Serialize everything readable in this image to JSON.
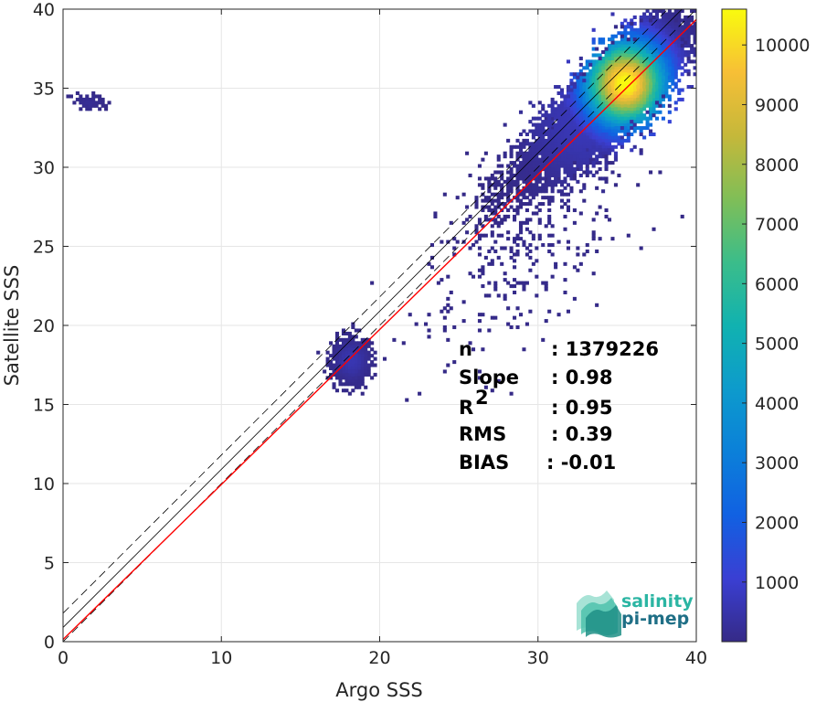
{
  "chart_data": {
    "type": "heatmap",
    "xlabel": "Argo SSS",
    "ylabel": "Satellite SSS",
    "xlim": [
      0,
      40
    ],
    "ylim": [
      0,
      40
    ],
    "xticks": [
      0,
      10,
      20,
      30,
      40
    ],
    "yticks": [
      0,
      5,
      10,
      15,
      20,
      25,
      30,
      35,
      40
    ],
    "grid": true,
    "colorbar": {
      "colormap": "parula",
      "min": 1,
      "max": 10600,
      "ticks": [
        1000,
        2000,
        3000,
        4000,
        5000,
        6000,
        7000,
        8000,
        9000,
        10000
      ]
    },
    "reference_lines": [
      {
        "style": "solid",
        "color": "#000000",
        "slope": 1,
        "intercept": 0.9
      },
      {
        "style": "dashed",
        "color": "#000000",
        "slope": 1,
        "intercept": 1.8
      },
      {
        "style": "dashed",
        "color": "#000000",
        "slope": 1,
        "intercept": 0
      }
    ],
    "regression_line": {
      "color": "#ff0000",
      "slope": 0.98,
      "intercept": 0.14
    },
    "clusters": [
      {
        "cx": 35.5,
        "cy": 35.3,
        "sx": 1.7,
        "sy": 1.8,
        "rho": 0.7,
        "peak": 10600,
        "n": 9000
      },
      {
        "cx": 33.0,
        "cy": 33.0,
        "sx": 2.6,
        "sy": 2.6,
        "rho": 0.85,
        "peak": 700,
        "n": 3500
      },
      {
        "cx": 18.2,
        "cy": 17.8,
        "sx": 0.6,
        "sy": 0.7,
        "rho": 0.1,
        "peak": 600,
        "n": 900
      },
      {
        "cx": 1.6,
        "cy": 34.1,
        "sx": 0.5,
        "sy": 0.25,
        "rho": 0.0,
        "peak": 200,
        "n": 60
      },
      {
        "cx": 29.5,
        "cy": 25.0,
        "sx": 3.5,
        "sy": 3.8,
        "rho": 0.6,
        "peak": 60,
        "n": 300
      }
    ],
    "stats": [
      {
        "label": "n",
        "value": ": 1379226"
      },
      {
        "label": "Slope",
        "value": ": 0.98"
      },
      {
        "label": "R",
        "sup": "2",
        "value": ": 0.95"
      },
      {
        "label": "RMS",
        "value": ": 0.39"
      },
      {
        "label": "BIAS",
        "value": ": -0.01"
      }
    ]
  },
  "logo": {
    "line1": "salinity",
    "line2": "pi-mep",
    "color1": "#2bb5a3",
    "color2": "#1f6f86"
  }
}
